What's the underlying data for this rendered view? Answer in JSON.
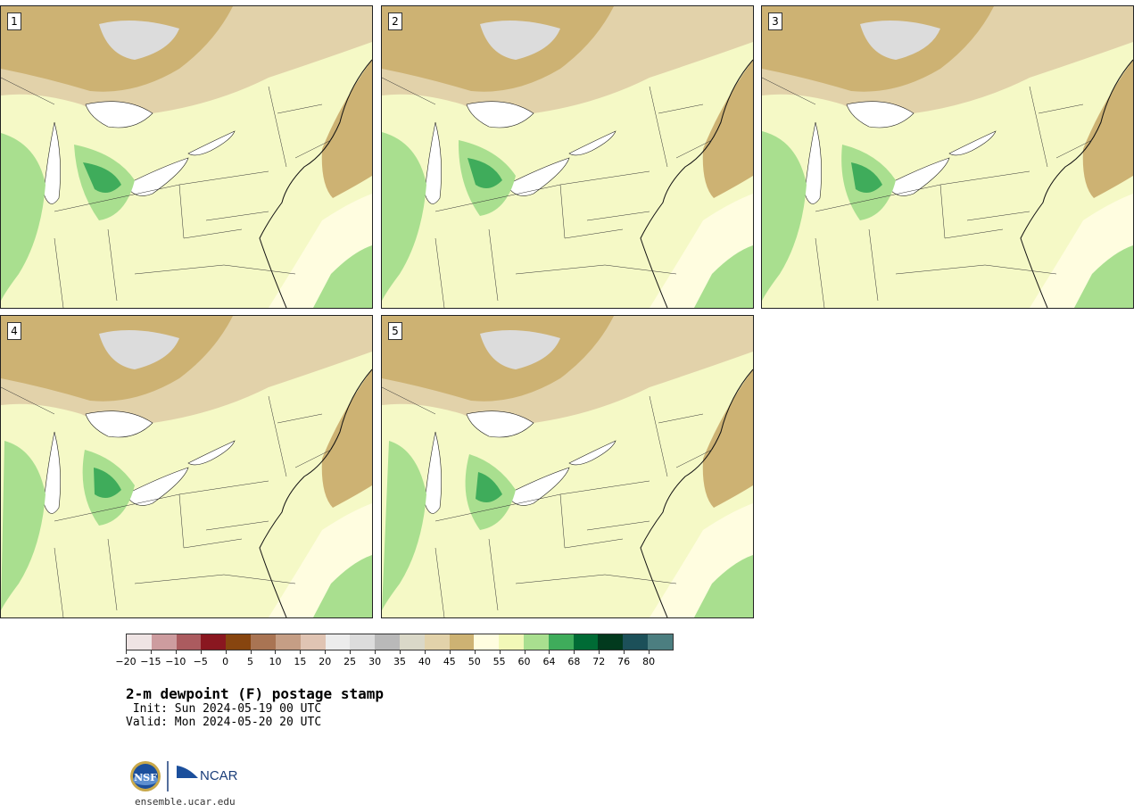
{
  "title": "2-m dewpoint (F) postage stamp",
  "init_line": " Init: Sun 2024-05-19 00 UTC",
  "valid_line": "Valid: Mon 2024-05-20 20 UTC",
  "footer_url": "ensemble.ucar.edu",
  "logos": {
    "nsf": "NSF",
    "ncar": "NCAR"
  },
  "members": [
    {
      "label": "1"
    },
    {
      "label": "2"
    },
    {
      "label": "3"
    },
    {
      "label": "4"
    },
    {
      "label": "5"
    }
  ],
  "colorbar": {
    "colors": [
      "#efe4e4",
      "#cd9c9f",
      "#ab5b5f",
      "#8a1720",
      "#87450f",
      "#a97453",
      "#c59e85",
      "#e0c4b3",
      "#ececec",
      "#dcdcdc",
      "#b9b9b9",
      "#dad8c8",
      "#e2d2aa",
      "#cdb273",
      "#fffde0",
      "#f2f8b8",
      "#a9df8f",
      "#3fac5b",
      "#006b35",
      "#023a1e",
      "#1c5059",
      "#4c7e80"
    ],
    "tick_labels": [
      "−20",
      "−15",
      "−10",
      "−5",
      "0",
      "5",
      "10",
      "15",
      "20",
      "25",
      "30",
      "35",
      "40",
      "45",
      "50",
      "55",
      "60",
      "64",
      "68",
      "72",
      "76",
      "80"
    ]
  },
  "map_colors": {
    "land_base": "#f5f9c6",
    "very_dry": "#cdb273",
    "dry": "#e2d2aa",
    "gray": "#dcdcdc",
    "moist_light": "#fffde0",
    "moist": "#a9df8f",
    "moister": "#3fac5b",
    "ocean_humid": "#a9df8f"
  }
}
